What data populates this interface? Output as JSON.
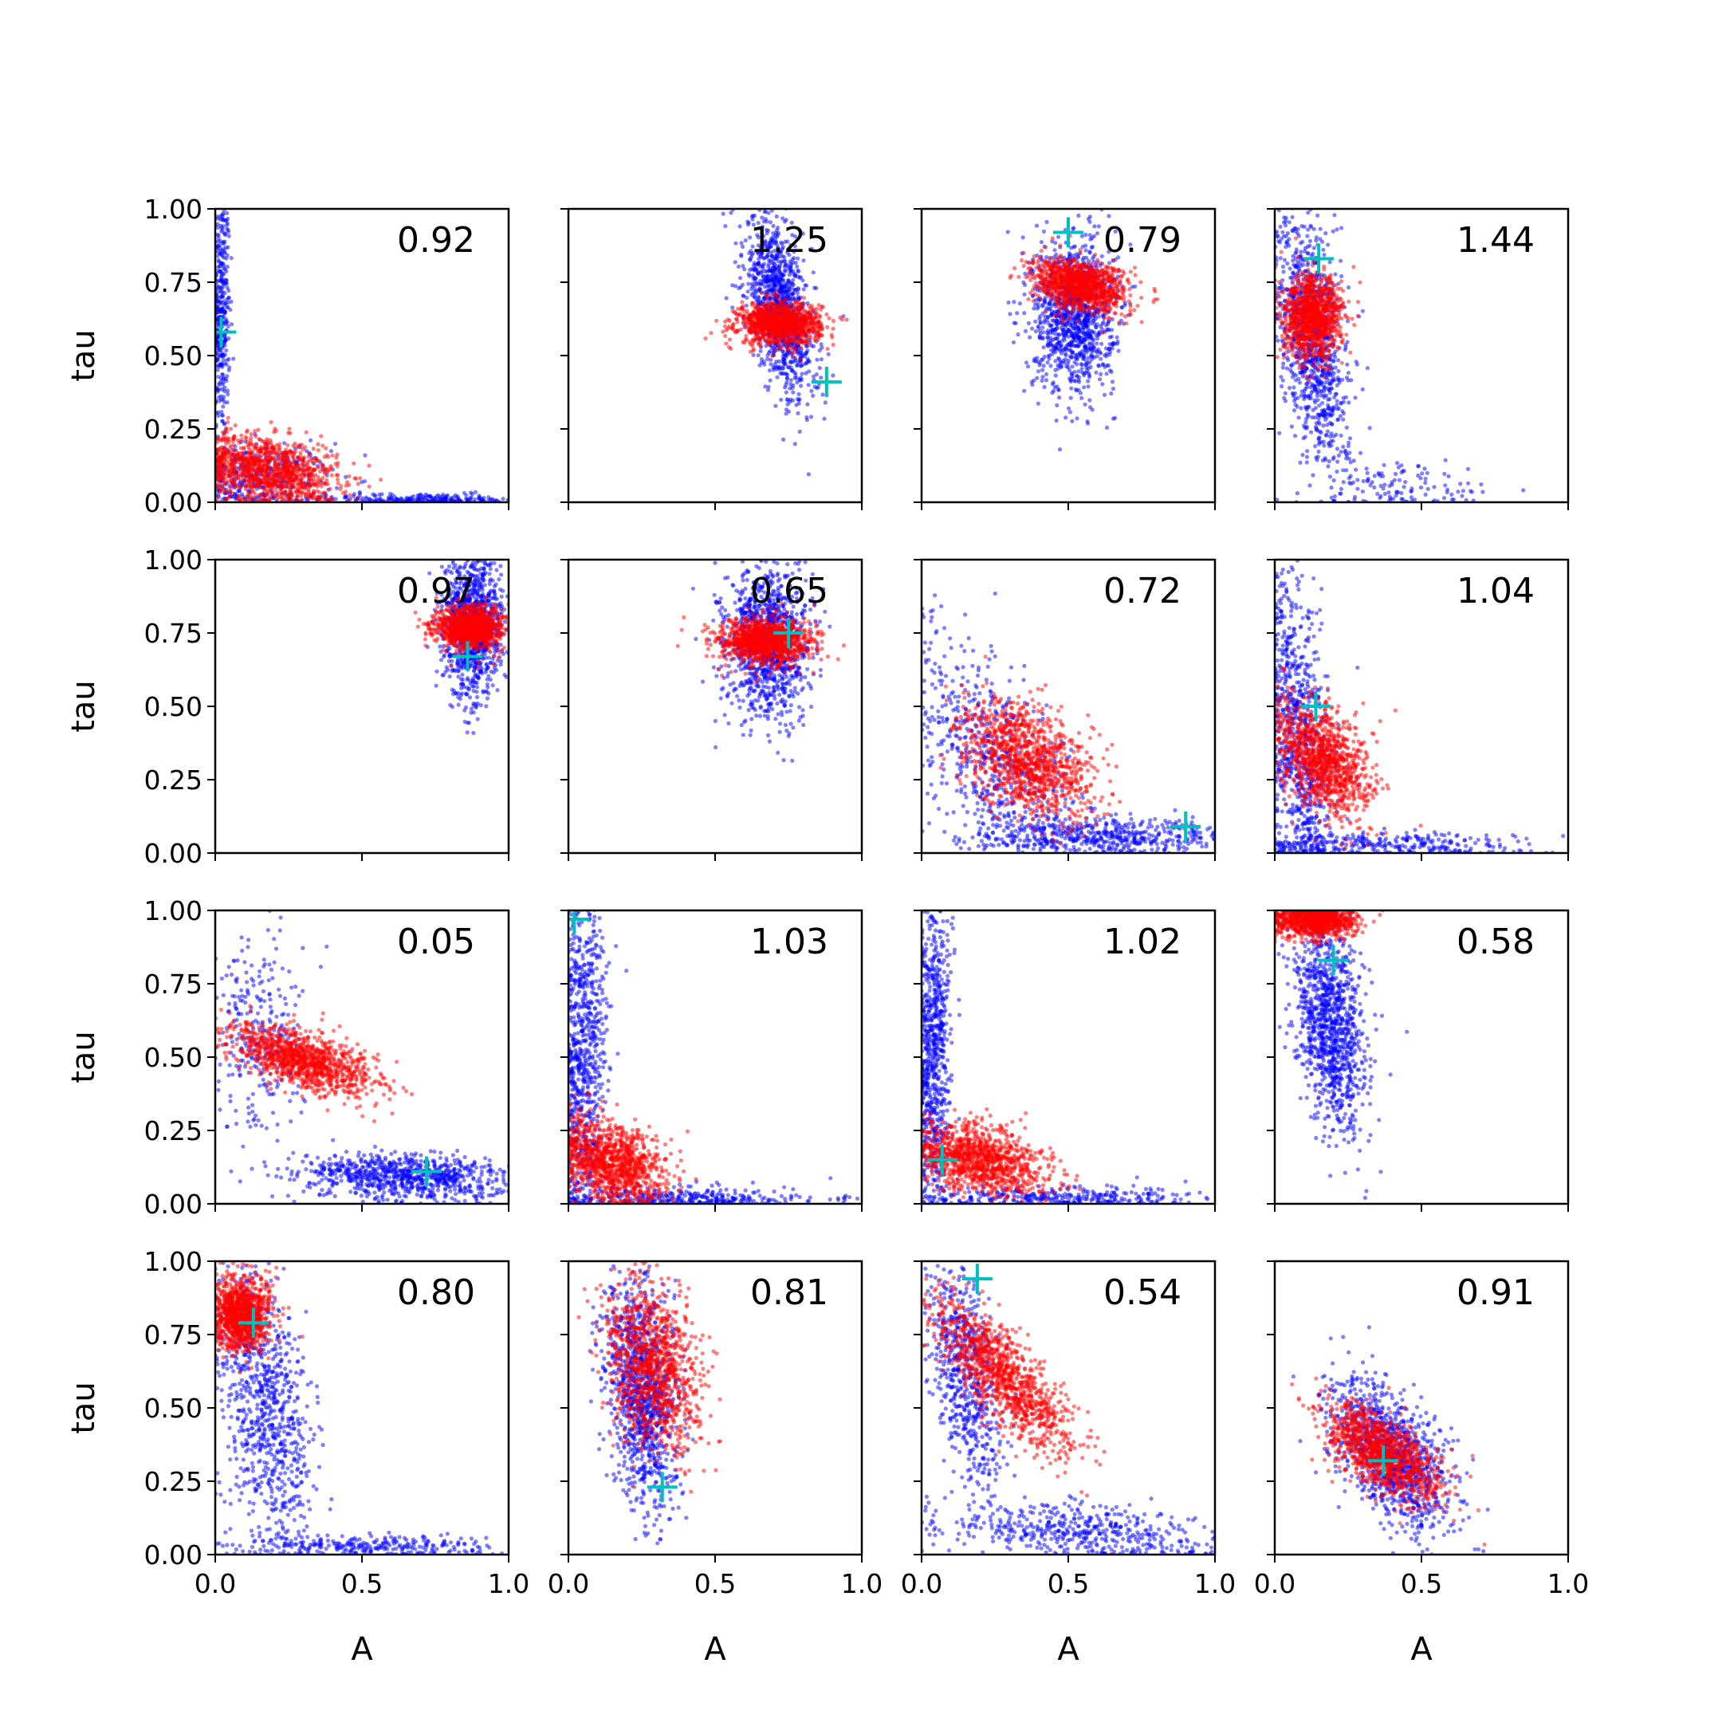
{
  "figure": {
    "xlabel": "A",
    "ylabel": "tau",
    "xticks": [
      "0.0",
      "0.5",
      "1.0"
    ],
    "yticks": [
      "0.00",
      "0.25",
      "0.50",
      "0.75",
      "1.00"
    ],
    "xlim": [
      0,
      1
    ],
    "ylim": [
      0,
      1
    ],
    "colors": {
      "series_a": "#0000ff",
      "series_b": "#ff0000",
      "marker": "#00bfbf"
    }
  },
  "chart_data": [
    {
      "type": "scatter",
      "row": 0,
      "col": 0,
      "annotation": "0.92",
      "marker": [
        0.02,
        0.58
      ],
      "series": [
        {
          "color": "#0000ff",
          "n": 950,
          "cloud": [
            [
              0.02,
              0.65,
              0.015,
              0.22,
              0,
              0.4
            ],
            [
              0.15,
              0.08,
              0.12,
              0.06,
              0,
              0.35
            ],
            [
              0.7,
              0.01,
              0.2,
              0.01,
              0,
              0.25
            ]
          ]
        },
        {
          "color": "#ff0000",
          "n": 1100,
          "cloud": [
            [
              0.18,
              0.11,
              0.12,
              0.06,
              -0.3,
              1
            ]
          ]
        }
      ]
    },
    {
      "type": "scatter",
      "row": 0,
      "col": 1,
      "annotation": "1.25",
      "marker": [
        0.88,
        0.41
      ],
      "series": [
        {
          "color": "#0000ff",
          "n": 1100,
          "cloud": [
            [
              0.72,
              0.66,
              0.06,
              0.15,
              -0.55,
              1
            ]
          ]
        },
        {
          "color": "#ff0000",
          "n": 1100,
          "cloud": [
            [
              0.72,
              0.61,
              0.07,
              0.035,
              0,
              1
            ]
          ]
        }
      ]
    },
    {
      "type": "scatter",
      "row": 0,
      "col": 2,
      "annotation": "0.79",
      "marker": [
        0.5,
        0.92
      ],
      "series": [
        {
          "color": "#0000ff",
          "n": 1100,
          "cloud": [
            [
              0.52,
              0.64,
              0.07,
              0.13,
              0,
              1
            ]
          ]
        },
        {
          "color": "#ff0000",
          "n": 1100,
          "cloud": [
            [
              0.54,
              0.74,
              0.08,
              0.045,
              -0.3,
              1
            ]
          ]
        }
      ]
    },
    {
      "type": "scatter",
      "row": 0,
      "col": 3,
      "annotation": "1.44",
      "marker": [
        0.15,
        0.83
      ],
      "series": [
        {
          "color": "#0000ff",
          "n": 1100,
          "cloud": [
            [
              0.13,
              0.55,
              0.06,
              0.22,
              -0.45,
              0.9
            ],
            [
              0.45,
              0.05,
              0.15,
              0.04,
              0,
              0.1
            ]
          ]
        },
        {
          "color": "#ff0000",
          "n": 1100,
          "cloud": [
            [
              0.13,
              0.63,
              0.05,
              0.07,
              0,
              1
            ]
          ]
        }
      ]
    },
    {
      "type": "scatter",
      "row": 1,
      "col": 0,
      "annotation": "0.97",
      "marker": [
        0.86,
        0.67
      ],
      "series": [
        {
          "color": "#0000ff",
          "n": 1100,
          "cloud": [
            [
              0.88,
              0.78,
              0.05,
              0.12,
              0,
              1
            ]
          ]
        },
        {
          "color": "#ff0000",
          "n": 1100,
          "cloud": [
            [
              0.87,
              0.77,
              0.06,
              0.035,
              0,
              1
            ]
          ]
        }
      ]
    },
    {
      "type": "scatter",
      "row": 1,
      "col": 1,
      "annotation": "0.65",
      "marker": [
        0.75,
        0.75
      ],
      "series": [
        {
          "color": "#0000ff",
          "n": 1100,
          "cloud": [
            [
              0.68,
              0.72,
              0.07,
              0.13,
              0,
              1
            ]
          ]
        },
        {
          "color": "#ff0000",
          "n": 1100,
          "cloud": [
            [
              0.67,
              0.72,
              0.08,
              0.04,
              0,
              1
            ]
          ]
        }
      ]
    },
    {
      "type": "scatter",
      "row": 1,
      "col": 2,
      "annotation": "0.72",
      "marker": [
        0.9,
        0.09
      ],
      "series": [
        {
          "color": "#0000ff",
          "n": 1100,
          "cloud": [
            [
              0.25,
              0.3,
              0.15,
              0.2,
              -0.5,
              0.55
            ],
            [
              0.65,
              0.06,
              0.22,
              0.03,
              0,
              0.45
            ]
          ]
        },
        {
          "color": "#ff0000",
          "n": 1100,
          "cloud": [
            [
              0.36,
              0.32,
              0.11,
              0.1,
              -0.4,
              1
            ]
          ]
        }
      ]
    },
    {
      "type": "scatter",
      "row": 1,
      "col": 3,
      "annotation": "1.04",
      "marker": [
        0.14,
        0.5
      ],
      "series": [
        {
          "color": "#0000ff",
          "n": 1100,
          "cloud": [
            [
              0.08,
              0.4,
              0.06,
              0.28,
              -0.4,
              0.75
            ],
            [
              0.4,
              0.03,
              0.25,
              0.02,
              0,
              0.25
            ]
          ]
        },
        {
          "color": "#ff0000",
          "n": 1100,
          "cloud": [
            [
              0.16,
              0.32,
              0.08,
              0.1,
              -0.4,
              1
            ]
          ]
        }
      ]
    },
    {
      "type": "scatter",
      "row": 2,
      "col": 0,
      "annotation": "0.05",
      "marker": [
        0.72,
        0.11
      ],
      "series": [
        {
          "color": "#0000ff",
          "n": 1100,
          "cloud": [
            [
              0.65,
              0.09,
              0.18,
              0.04,
              -0.2,
              0.75
            ],
            [
              0.15,
              0.55,
              0.07,
              0.18,
              0,
              0.25
            ]
          ]
        },
        {
          "color": "#ff0000",
          "n": 1100,
          "cloud": [
            [
              0.3,
              0.49,
              0.12,
              0.06,
              -0.6,
              1
            ]
          ]
        }
      ]
    },
    {
      "type": "scatter",
      "row": 2,
      "col": 1,
      "annotation": "1.03",
      "marker": [
        0.02,
        0.97
      ],
      "series": [
        {
          "color": "#0000ff",
          "n": 1100,
          "cloud": [
            [
              0.05,
              0.55,
              0.04,
              0.28,
              0,
              0.7
            ],
            [
              0.4,
              0.02,
              0.25,
              0.02,
              0,
              0.3
            ]
          ]
        },
        {
          "color": "#ff0000",
          "n": 1100,
          "cloud": [
            [
              0.15,
              0.14,
              0.09,
              0.07,
              -0.3,
              1
            ]
          ]
        }
      ]
    },
    {
      "type": "scatter",
      "row": 2,
      "col": 2,
      "annotation": "1.02",
      "marker": [
        0.07,
        0.15
      ],
      "series": [
        {
          "color": "#0000ff",
          "n": 1100,
          "cloud": [
            [
              0.04,
              0.55,
              0.03,
              0.28,
              0,
              0.7
            ],
            [
              0.45,
              0.02,
              0.25,
              0.02,
              0,
              0.3
            ]
          ]
        },
        {
          "color": "#ff0000",
          "n": 1100,
          "cloud": [
            [
              0.2,
              0.15,
              0.11,
              0.06,
              -0.3,
              1
            ]
          ]
        }
      ]
    },
    {
      "type": "scatter",
      "row": 2,
      "col": 3,
      "annotation": "0.58",
      "marker": [
        0.2,
        0.83
      ],
      "series": [
        {
          "color": "#0000ff",
          "n": 1100,
          "cloud": [
            [
              0.19,
              0.6,
              0.06,
              0.18,
              -0.35,
              1
            ]
          ]
        },
        {
          "color": "#ff0000",
          "n": 1100,
          "cloud": [
            [
              0.14,
              0.97,
              0.07,
              0.03,
              0,
              1
            ]
          ]
        }
      ]
    },
    {
      "type": "scatter",
      "row": 3,
      "col": 0,
      "annotation": "0.80",
      "marker": [
        0.13,
        0.79
      ],
      "series": [
        {
          "color": "#0000ff",
          "n": 1100,
          "cloud": [
            [
              0.17,
              0.5,
              0.08,
              0.25,
              -0.4,
              0.75
            ],
            [
              0.55,
              0.03,
              0.22,
              0.02,
              0,
              0.25
            ]
          ]
        },
        {
          "color": "#ff0000",
          "n": 1100,
          "cloud": [
            [
              0.09,
              0.82,
              0.05,
              0.06,
              0,
              1
            ]
          ]
        }
      ]
    },
    {
      "type": "scatter",
      "row": 3,
      "col": 1,
      "annotation": "0.81",
      "marker": [
        0.32,
        0.23
      ],
      "series": [
        {
          "color": "#0000ff",
          "n": 1100,
          "cloud": [
            [
              0.25,
              0.55,
              0.06,
              0.2,
              -0.3,
              1
            ]
          ]
        },
        {
          "color": "#ff0000",
          "n": 1100,
          "cloud": [
            [
              0.29,
              0.65,
              0.08,
              0.14,
              -0.3,
              1
            ]
          ]
        }
      ]
    },
    {
      "type": "scatter",
      "row": 3,
      "col": 2,
      "annotation": "0.54",
      "marker": [
        0.19,
        0.94
      ],
      "series": [
        {
          "color": "#0000ff",
          "n": 1100,
          "cloud": [
            [
              0.15,
              0.62,
              0.06,
              0.2,
              -0.5,
              0.55
            ],
            [
              0.55,
              0.08,
              0.25,
              0.05,
              -0.4,
              0.45
            ]
          ]
        },
        {
          "color": "#ff0000",
          "n": 1100,
          "cloud": [
            [
              0.28,
              0.6,
              0.12,
              0.13,
              -0.8,
              1
            ]
          ]
        }
      ]
    },
    {
      "type": "scatter",
      "row": 3,
      "col": 3,
      "annotation": "0.91",
      "marker": [
        0.37,
        0.32
      ],
      "series": [
        {
          "color": "#0000ff",
          "n": 1100,
          "cloud": [
            [
              0.4,
              0.33,
              0.1,
              0.12,
              -0.55,
              1
            ]
          ]
        },
        {
          "color": "#ff0000",
          "n": 1100,
          "cloud": [
            [
              0.36,
              0.35,
              0.1,
              0.08,
              -0.6,
              1
            ]
          ]
        }
      ]
    }
  ]
}
